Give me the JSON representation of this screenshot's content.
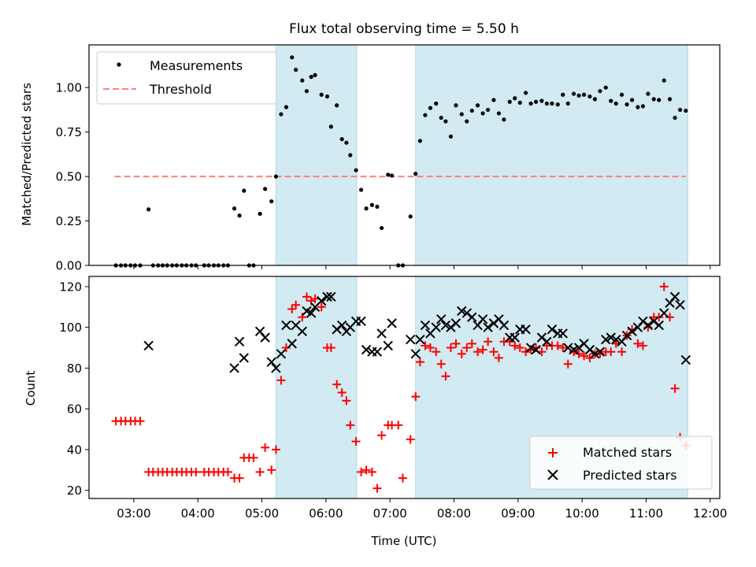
{
  "figure_title": "Flux total observing time = 5.50 h",
  "chart_data": [
    {
      "type": "scatter",
      "title": "Flux total observing time = 5.50 h",
      "xlabel": "",
      "ylabel": "Matched/Predicted stars",
      "xlim_hours": [
        2.3,
        12.15
      ],
      "ylim": [
        0,
        1.24
      ],
      "yticks": [
        0.0,
        0.25,
        0.5,
        0.75,
        1.0
      ],
      "ytick_labels": [
        "0.00",
        "0.25",
        "0.50",
        "0.75",
        "1.00"
      ],
      "xticks_hours": [
        3,
        4,
        5,
        6,
        7,
        8,
        9,
        10,
        11,
        12
      ],
      "grid": false,
      "legend_position": "top-left",
      "legend": [
        {
          "label": "Measurements",
          "marker": "dot",
          "color": "#000000"
        },
        {
          "label": "Threshold",
          "marker": "dashed-line",
          "color": "#ff7f7f"
        }
      ],
      "shaded_spans_hours": [
        [
          5.22,
          6.48
        ],
        [
          7.4,
          11.65
        ]
      ],
      "shade_color": "#add8e6",
      "threshold": {
        "value": 0.5,
        "x_hours": [
          2.7,
          11.62
        ]
      },
      "series": [
        {
          "name": "Measurements",
          "color": "#000000",
          "x_hours": [
            2.72,
            2.8,
            2.87,
            2.95,
            3.02,
            3.1,
            3.23,
            3.3,
            3.38,
            3.45,
            3.52,
            3.6,
            3.67,
            3.75,
            3.82,
            3.9,
            3.97,
            4.1,
            4.17,
            4.25,
            4.32,
            4.4,
            4.47,
            4.57,
            4.65,
            4.72,
            4.8,
            4.87,
            4.97,
            5.05,
            5.15,
            5.22,
            5.3,
            5.38,
            5.47,
            5.53,
            5.63,
            5.7,
            5.77,
            5.83,
            5.93,
            6.02,
            6.08,
            6.17,
            6.25,
            6.32,
            6.38,
            6.47,
            6.55,
            6.63,
            6.72,
            6.8,
            6.87,
            6.97,
            7.03,
            7.13,
            7.2,
            7.32,
            7.4,
            7.47,
            7.55,
            7.63,
            7.72,
            7.8,
            7.87,
            7.95,
            8.03,
            8.12,
            8.2,
            8.28,
            8.37,
            8.45,
            8.53,
            8.62,
            8.7,
            8.78,
            8.87,
            8.95,
            9.03,
            9.12,
            9.2,
            9.28,
            9.37,
            9.45,
            9.53,
            9.62,
            9.7,
            9.78,
            9.87,
            9.95,
            10.03,
            10.12,
            10.2,
            10.28,
            10.37,
            10.45,
            10.53,
            10.62,
            10.7,
            10.78,
            10.87,
            10.95,
            11.03,
            11.12,
            11.2,
            11.28,
            11.37,
            11.45,
            11.53,
            11.62
          ],
          "values": [
            0,
            0,
            0,
            0,
            0,
            0,
            0.315,
            0,
            0,
            0,
            0,
            0,
            0,
            0,
            0,
            0,
            0,
            0,
            0,
            0,
            0,
            0,
            0,
            0.32,
            0.28,
            0.42,
            0,
            0,
            0.29,
            0.43,
            0.36,
            0.5,
            0.85,
            0.89,
            1.17,
            1.1,
            1.04,
            0.98,
            1.06,
            1.07,
            0.96,
            0.95,
            0.78,
            0.9,
            0.71,
            0.69,
            0.62,
            0.535,
            0.425,
            0.32,
            0.34,
            0.33,
            0.21,
            0.51,
            0.505,
            0,
            0,
            0.275,
            0.515,
            0.7,
            0.845,
            0.885,
            0.91,
            0.83,
            0.81,
            0.725,
            0.9,
            0.85,
            0.81,
            0.87,
            0.9,
            0.855,
            0.875,
            0.93,
            0.855,
            0.82,
            0.92,
            0.94,
            0.915,
            0.97,
            0.91,
            0.92,
            0.925,
            0.91,
            0.91,
            0.905,
            0.96,
            0.91,
            0.965,
            0.955,
            0.96,
            0.95,
            0.935,
            0.98,
            1.0,
            0.925,
            0.91,
            0.96,
            0.905,
            0.93,
            0.89,
            0.895,
            0.965,
            0.935,
            0.93,
            1.04,
            0.935,
            0.83,
            0.875,
            0.87
          ]
        }
      ]
    },
    {
      "type": "scatter",
      "title": "",
      "xlabel": "Time (UTC)",
      "ylabel": "Count",
      "xlim_hours": [
        2.3,
        12.15
      ],
      "ylim": [
        16,
        125
      ],
      "yticks": [
        20,
        40,
        60,
        80,
        100,
        120
      ],
      "ytick_labels": [
        "20",
        "40",
        "60",
        "80",
        "100",
        "120"
      ],
      "xticks_hours": [
        3,
        4,
        5,
        6,
        7,
        8,
        9,
        10,
        11,
        12
      ],
      "xtick_labels": [
        "03:00",
        "04:00",
        "05:00",
        "06:00",
        "07:00",
        "08:00",
        "09:00",
        "10:00",
        "11:00",
        "12:00"
      ],
      "grid": false,
      "legend_position": "bottom-right",
      "legend": [
        {
          "label": "Matched stars",
          "marker": "plus",
          "color": "#ff0000"
        },
        {
          "label": "Predicted stars",
          "marker": "x",
          "color": "#000000"
        }
      ],
      "shaded_spans_hours": [
        [
          5.22,
          6.48
        ],
        [
          7.4,
          11.65
        ]
      ],
      "shade_color": "#add8e6",
      "series": [
        {
          "name": "Matched stars",
          "marker": "plus",
          "color": "#ff0000",
          "x_hours": [
            2.72,
            2.8,
            2.87,
            2.95,
            3.02,
            3.1,
            3.23,
            3.3,
            3.38,
            3.45,
            3.52,
            3.6,
            3.67,
            3.75,
            3.82,
            3.9,
            3.97,
            4.1,
            4.17,
            4.25,
            4.32,
            4.4,
            4.47,
            4.57,
            4.65,
            4.72,
            4.8,
            4.87,
            4.97,
            5.05,
            5.15,
            5.22,
            5.3,
            5.38,
            5.47,
            5.53,
            5.63,
            5.7,
            5.77,
            5.83,
            5.93,
            6.02,
            6.08,
            6.17,
            6.25,
            6.32,
            6.38,
            6.47,
            6.55,
            6.63,
            6.72,
            6.8,
            6.87,
            6.97,
            7.03,
            7.13,
            7.2,
            7.32,
            7.4,
            7.47,
            7.55,
            7.63,
            7.72,
            7.8,
            7.87,
            7.95,
            8.03,
            8.12,
            8.2,
            8.28,
            8.37,
            8.45,
            8.53,
            8.62,
            8.7,
            8.78,
            8.87,
            8.95,
            9.03,
            9.12,
            9.2,
            9.28,
            9.37,
            9.45,
            9.53,
            9.62,
            9.7,
            9.78,
            9.87,
            9.95,
            10.03,
            10.12,
            10.2,
            10.28,
            10.37,
            10.45,
            10.53,
            10.62,
            10.7,
            10.78,
            10.87,
            10.95,
            11.03,
            11.12,
            11.2,
            11.28,
            11.37,
            11.45,
            11.53,
            11.62
          ],
          "values": [
            54,
            54,
            54,
            54,
            54,
            54,
            29,
            29,
            29,
            29,
            29,
            29,
            29,
            29,
            29,
            29,
            29,
            29,
            29,
            29,
            29,
            29,
            29,
            26,
            26,
            36,
            36,
            36,
            29,
            41,
            30,
            40,
            74,
            90,
            109,
            111,
            105,
            115,
            113,
            114,
            110,
            90,
            90,
            72,
            68,
            64,
            52,
            44,
            29,
            30,
            29,
            21,
            47,
            52,
            52,
            52,
            26,
            45,
            66,
            83,
            91,
            90,
            88,
            82,
            76,
            90,
            92,
            87,
            90,
            92,
            88,
            89,
            93,
            88,
            85,
            93,
            93,
            91,
            90,
            88,
            89,
            90,
            88,
            91,
            91,
            91,
            90,
            82,
            88,
            87,
            86,
            85,
            87,
            87,
            88,
            88,
            92,
            88,
            96,
            99,
            92,
            91,
            100,
            105,
            105,
            120,
            105,
            70,
            46,
            42
          ]
        },
        {
          "name": "Predicted stars",
          "marker": "x",
          "color": "#000000",
          "x_hours": [
            3.23,
            4.57,
            4.65,
            4.72,
            4.97,
            5.05,
            5.15,
            5.22,
            5.3,
            5.38,
            5.47,
            5.53,
            5.63,
            5.7,
            5.77,
            5.83,
            5.93,
            6.02,
            6.08,
            6.17,
            6.25,
            6.32,
            6.38,
            6.47,
            6.55,
            6.63,
            6.72,
            6.8,
            6.87,
            6.97,
            7.03,
            7.32,
            7.4,
            7.47,
            7.55,
            7.63,
            7.72,
            7.8,
            7.87,
            7.95,
            8.03,
            8.12,
            8.2,
            8.28,
            8.37,
            8.45,
            8.53,
            8.62,
            8.7,
            8.78,
            8.87,
            8.95,
            9.03,
            9.12,
            9.2,
            9.28,
            9.37,
            9.45,
            9.53,
            9.62,
            9.7,
            9.78,
            9.87,
            9.95,
            10.03,
            10.12,
            10.2,
            10.28,
            10.37,
            10.45,
            10.53,
            10.62,
            10.7,
            10.78,
            10.87,
            10.95,
            11.03,
            11.12,
            11.2,
            11.28,
            11.37,
            11.45,
            11.53,
            11.62
          ],
          "values": [
            91,
            80,
            93,
            85,
            98,
            95,
            83,
            80,
            87,
            101,
            92,
            101,
            98,
            108,
            107,
            110,
            113,
            115,
            115,
            99,
            101,
            98,
            100,
            103,
            103,
            89,
            88,
            88,
            97,
            91,
            102,
            94,
            87,
            94,
            101,
            97,
            100,
            104,
            101,
            100,
            102,
            108,
            107,
            105,
            101,
            104,
            100,
            102,
            104,
            101,
            95,
            95,
            99,
            99,
            90,
            89,
            95,
            93,
            99,
            97,
            97,
            90,
            89,
            90,
            92,
            89,
            87,
            88,
            94,
            95,
            94,
            93,
            96,
            98,
            100,
            103,
            101,
            103,
            101,
            107,
            112,
            115,
            111,
            84
          ]
        }
      ]
    }
  ]
}
